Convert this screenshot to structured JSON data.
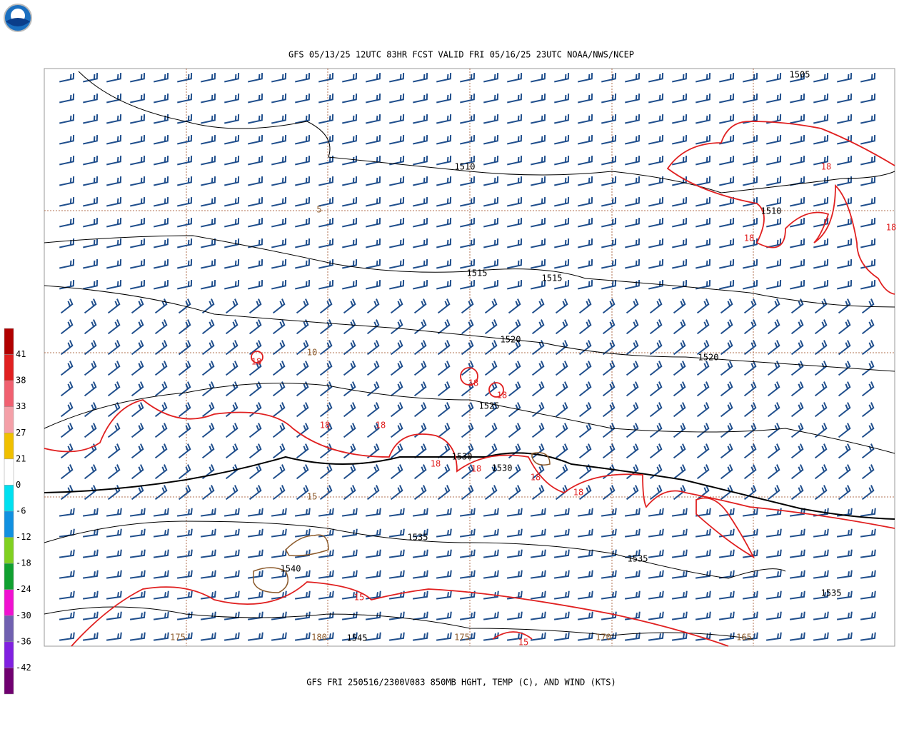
{
  "header": {
    "title": "GFS 05/13/25 12UTC 83HR FCST VALID FRI 05/16/25 23UTC NOAA/NWS/NCEP"
  },
  "footer": {
    "caption": "GFS FRI 250516/2300V083 850MB HGHT, TEMP (C), AND WIND (KTS)"
  },
  "colorbar": {
    "ticks": [
      41,
      38,
      33,
      27,
      21,
      0,
      -6,
      -12,
      -18,
      -24,
      -30,
      -36,
      -42
    ],
    "colors": [
      "#b00000",
      "#e02020",
      "#f06070",
      "#f4a0a8",
      "#f0c000",
      "#ffffff",
      "#00e0f0",
      "#1090e0",
      "#80d020",
      "#10a030",
      "#f010d0",
      "#7060b0",
      "#8020e0",
      "#700070"
    ]
  },
  "height_labels": [
    "1505",
    "1510",
    "1510",
    "1515",
    "1515",
    "1520",
    "1520",
    "1525",
    "1530",
    "1530",
    "1535",
    "1535",
    "1535",
    "1540",
    "1545"
  ],
  "temperature_labels": [
    "18",
    "18",
    "18",
    "18",
    "18",
    "18",
    "18",
    "18",
    "18",
    "18",
    "18",
    "18",
    "15",
    "15"
  ],
  "grid_labels": [
    "5",
    "10",
    "15",
    "175",
    "180",
    "175",
    "170",
    "165"
  ]
}
